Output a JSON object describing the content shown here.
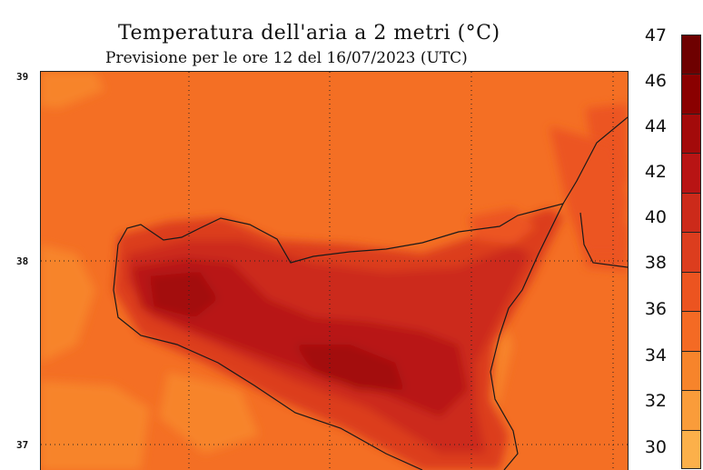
{
  "title": "Temperatura dell'aria a 2 metri (°C)",
  "subtitle": "Previsione per le ore 12 del 16/07/2023 (UTC)",
  "latitude_labels": [
    "39",
    "38",
    "37"
  ],
  "colorbar": {
    "labels": [
      "47",
      "46",
      "44",
      "42",
      "40",
      "38",
      "36",
      "34",
      "32",
      "30"
    ],
    "colors": [
      "#6e0000",
      "#8a0000",
      "#a30a0a",
      "#b81414",
      "#cc2a1a",
      "#dc3d1e",
      "#ec5420",
      "#f46a24",
      "#f7842b",
      "#fa9c3a",
      "#fcb04a"
    ]
  },
  "map": {
    "sea_color": "#f46f24",
    "region": "Sicily"
  }
}
